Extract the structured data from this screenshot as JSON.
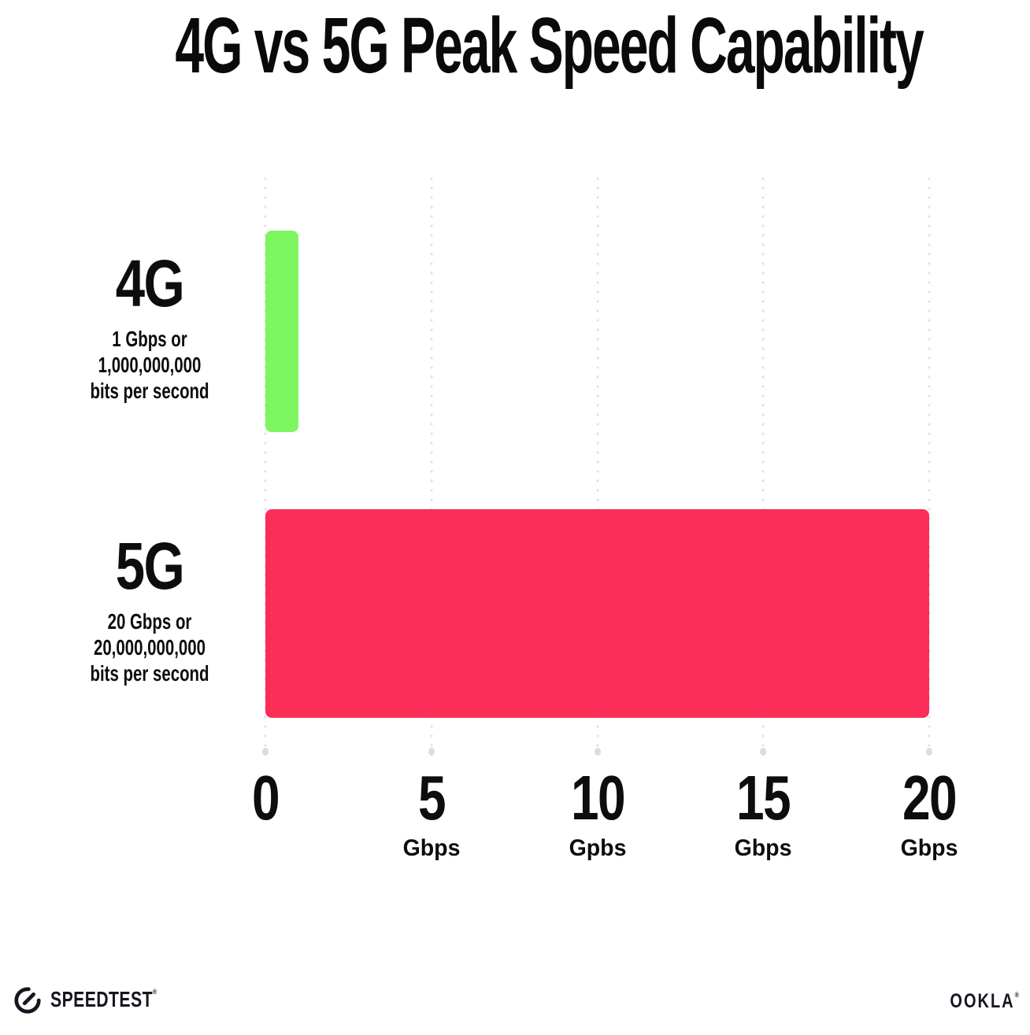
{
  "chart_data": {
    "type": "bar",
    "orientation": "horizontal",
    "title": "4G vs 5G Peak Speed Capability",
    "categories": [
      "4G",
      "5G"
    ],
    "values": [
      1,
      20
    ],
    "xlabel": "",
    "ylabel": "",
    "rows": [
      {
        "label": "4G",
        "sublabel_lines": [
          "1 Gbps or",
          "1,000,000,000",
          "bits per second"
        ],
        "value_gbps": 1,
        "color": "#7ef660"
      },
      {
        "label": "5G",
        "sublabel_lines": [
          "20 Gbps or",
          "20,000,000,000",
          "bits per second"
        ],
        "value_gbps": 20,
        "color": "#fc2d56"
      }
    ],
    "x_axis": {
      "range": [
        0,
        20
      ],
      "grid": "dotted-vertical",
      "grid_color": "#dfe1ee",
      "ticks": [
        {
          "value": 0,
          "number": "0",
          "unit": ""
        },
        {
          "value": 5,
          "number": "5",
          "unit": "Gbps"
        },
        {
          "value": 10,
          "number": "10",
          "unit": "Gpbs"
        },
        {
          "value": 15,
          "number": "15",
          "unit": "Gbps"
        },
        {
          "value": 20,
          "number": "20",
          "unit": "Gbps"
        }
      ]
    },
    "legend": "none"
  },
  "footer": {
    "speedtest_label": "SPEEDTEST",
    "speedtest_trademark": "®",
    "ookla_label": "OOKLA",
    "ookla_trademark": "®",
    "logo_color": "#15161e"
  },
  "colors": {
    "background": "#ffffff",
    "text": "#0d0d0d",
    "bar_4g": "#7ef660",
    "bar_5g": "#fc2d56",
    "grid_dot": "#dfe1ee"
  }
}
